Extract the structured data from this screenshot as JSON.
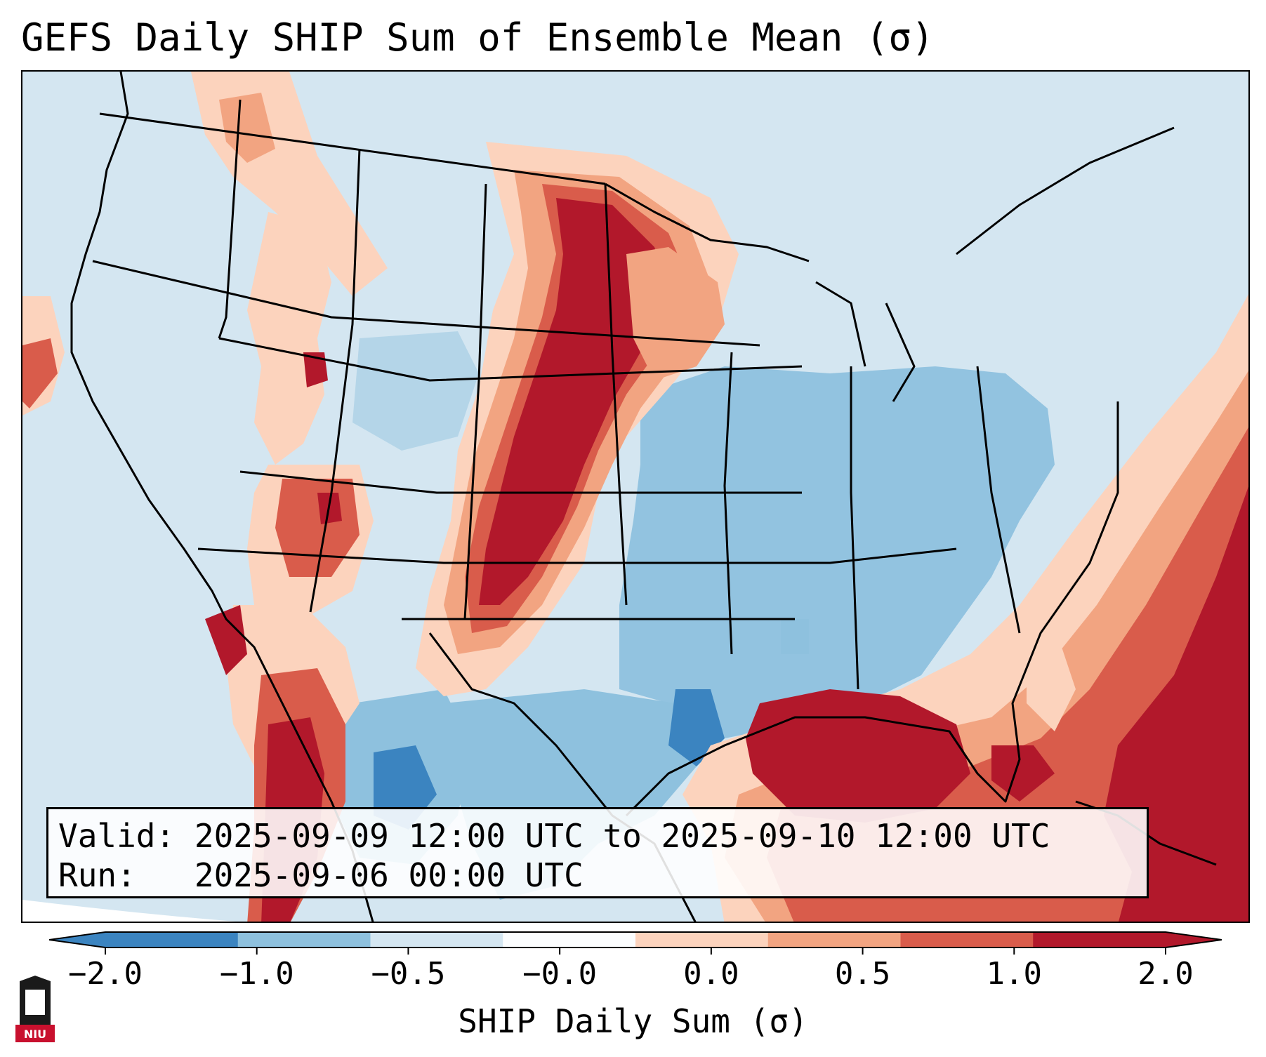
{
  "title": "GEFS Daily SHIP Sum of Ensemble Mean (σ)",
  "info": {
    "valid_label": "Valid:",
    "valid_value": "2025-09-09 12:00 UTC to 2025-09-10 12:00 UTC",
    "run_label": "Run:",
    "run_value": "2025-09-06 00:00 UTC"
  },
  "colorbar": {
    "label": "SHIP Daily Sum (σ)",
    "tick_labels": [
      "−2.0",
      "−1.0",
      "−0.5",
      "−0.0",
      "0.0",
      "0.5",
      "1.0",
      "2.0"
    ],
    "colors": [
      "#3b84c0",
      "#8ec1de",
      "#d4e6f1",
      "#fbfdfe",
      "#fcd3bd",
      "#f2a481",
      "#d95c4b",
      "#b2182b"
    ],
    "extend": "both"
  },
  "legend_colors": {
    "ocean_background": "#d4e6f1",
    "deep_blue": "#3b84c0",
    "mid_blue": "#8ec1de",
    "light_blue": "#d4e6f1",
    "light_red": "#fcd3bd",
    "mid_red": "#f2a481",
    "dark_red": "#b2182b"
  },
  "logo": {
    "text": "NIU"
  }
}
